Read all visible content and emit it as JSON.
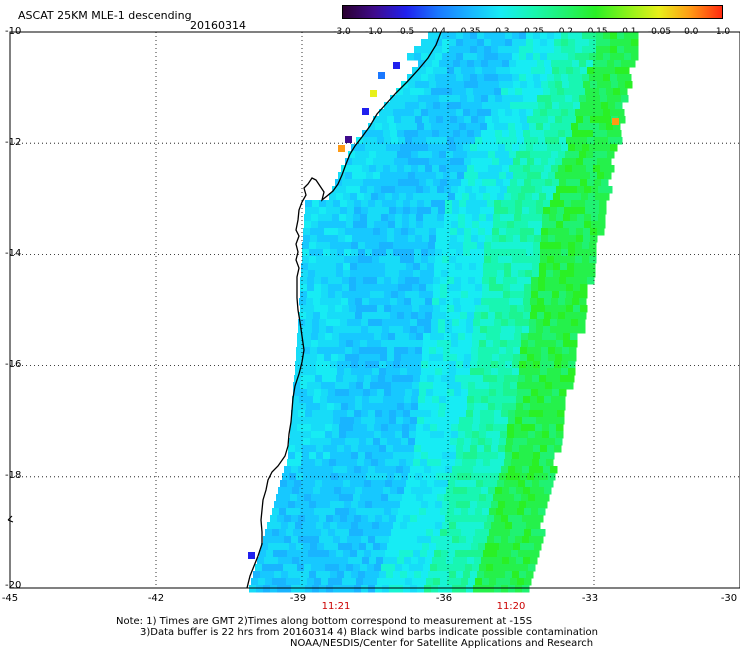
{
  "header": {
    "title": "ASCAT 25KM MLE-1 descending",
    "date": "20160314"
  },
  "colorbar": {
    "labels": [
      "-3.0",
      "-1.0",
      "-0.5",
      "-0.4",
      "-0.35",
      "-0.3",
      "-0.25",
      "-0.2",
      "-0.15",
      "-0.1",
      "-0.05",
      "0.0",
      "1.0"
    ],
    "colors": [
      "#2a0030",
      "#3f0b8c",
      "#2020ee",
      "#1a78ff",
      "#19b4ff",
      "#17ecf4",
      "#18f6b2",
      "#20f272",
      "#2af025",
      "#8af21a",
      "#e8f01a",
      "#ff9a15",
      "#ff2a10"
    ]
  },
  "map": {
    "lon_range": [
      -45,
      -30
    ],
    "lat_range": [
      -20,
      -10
    ],
    "y_ticks": [
      "-10",
      "-12",
      "-14",
      "-16",
      "-18",
      "-20"
    ],
    "x_ticks": [
      "-45",
      "-42",
      "-39",
      "-36",
      "-33",
      "-30"
    ],
    "times": [
      {
        "label": "11:21",
        "lon": -39
      },
      {
        "label": "11:20",
        "lon": -35
      }
    ]
  },
  "notes": {
    "line1": "Note: 1) Times are GMT 2)Times along bottom correspond to measurement at -15S",
    "line2": "3)Data buffer is 22 hrs from 20160314 4) Black wind barbs indicate possible contamination",
    "line3": "NOAA/NESDIS/Center for Satellite Applications and Research"
  }
}
